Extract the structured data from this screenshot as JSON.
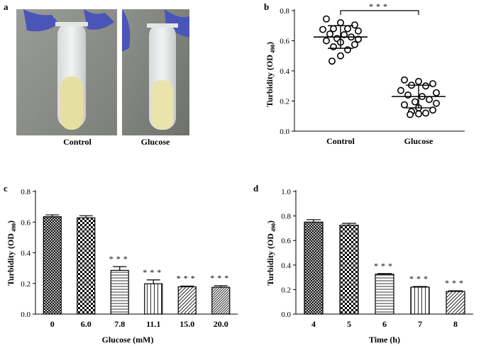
{
  "panels": {
    "a": {
      "letter": "a",
      "photos": [
        {
          "label": "Control",
          "liquid_color": "#e6e0a0"
        },
        {
          "label": "Glucose",
          "liquid_color": "#e9e4ac"
        }
      ]
    },
    "b": {
      "letter": "b"
    },
    "c": {
      "letter": "c"
    },
    "d": {
      "letter": "d"
    }
  },
  "colors": {
    "glove": "#4a55b8",
    "background_photo": "#8a8c88"
  },
  "chart_data": [
    {
      "id": "b",
      "type": "scatter",
      "title": "",
      "xlabel": "",
      "ylabel": "Turbidity (OD",
      "ylabel_sub": "490",
      "ylabel_close": ")",
      "ylim": [
        0,
        0.8
      ],
      "yticks": [
        "0.0",
        "0.2",
        "0.4",
        "0.6",
        "0.8"
      ],
      "categories": [
        "Control",
        "Glucose"
      ],
      "series": [
        {
          "category": "Control",
          "mean": 0.625,
          "sd": 0.075,
          "values": [
            0.745,
            0.72,
            0.705,
            0.68,
            0.68,
            0.675,
            0.665,
            0.645,
            0.64,
            0.625,
            0.615,
            0.61,
            0.6,
            0.59,
            0.575,
            0.56,
            0.54,
            0.5,
            0.465
          ]
        },
        {
          "category": "Glucose",
          "mean": 0.23,
          "sd": 0.075,
          "values": [
            0.34,
            0.33,
            0.315,
            0.305,
            0.3,
            0.27,
            0.255,
            0.24,
            0.23,
            0.21,
            0.195,
            0.185,
            0.175,
            0.155,
            0.14,
            0.13,
            0.12,
            0.115,
            0.11
          ]
        }
      ],
      "annotation": "***"
    },
    {
      "id": "c",
      "type": "bar",
      "title": "",
      "xlabel": "Glucose (mM)",
      "ylabel": "Turbidity (OD",
      "ylabel_sub": "490",
      "ylabel_close": ")",
      "ylim": [
        0,
        0.8
      ],
      "yticks": [
        "0.0",
        "0.2",
        "0.4",
        "0.6",
        "0.8"
      ],
      "categories": [
        "0",
        "6.0",
        "7.8",
        "11.1",
        "15.0",
        "20.0"
      ],
      "values": [
        0.635,
        0.628,
        0.285,
        0.198,
        0.178,
        0.175
      ],
      "errors": [
        0.012,
        0.014,
        0.025,
        0.025,
        0.005,
        0.01
      ],
      "patterns": [
        "crosshatch",
        "checker",
        "hlines",
        "vlines",
        "diag",
        "diag-dense"
      ],
      "significance": [
        "",
        "",
        "***",
        "***",
        "***",
        "***"
      ]
    },
    {
      "id": "d",
      "type": "bar",
      "title": "",
      "xlabel": "Time (h)",
      "ylabel": "Turbidity (OD",
      "ylabel_sub": "490",
      "ylabel_close": ")",
      "ylim": [
        0,
        1.0
      ],
      "yticks": [
        "0.0",
        "0.2",
        "0.4",
        "0.6",
        "0.8",
        "1.0"
      ],
      "categories": [
        "4",
        "5",
        "6",
        "7",
        "8"
      ],
      "values": [
        0.75,
        0.725,
        0.325,
        0.22,
        0.185
      ],
      "errors": [
        0.02,
        0.015,
        0.005,
        0.005,
        0.005
      ],
      "patterns": [
        "crosshatch",
        "checker",
        "hlines",
        "vlines",
        "diag"
      ],
      "significance": [
        "",
        "",
        "***",
        "***",
        "***"
      ]
    }
  ]
}
